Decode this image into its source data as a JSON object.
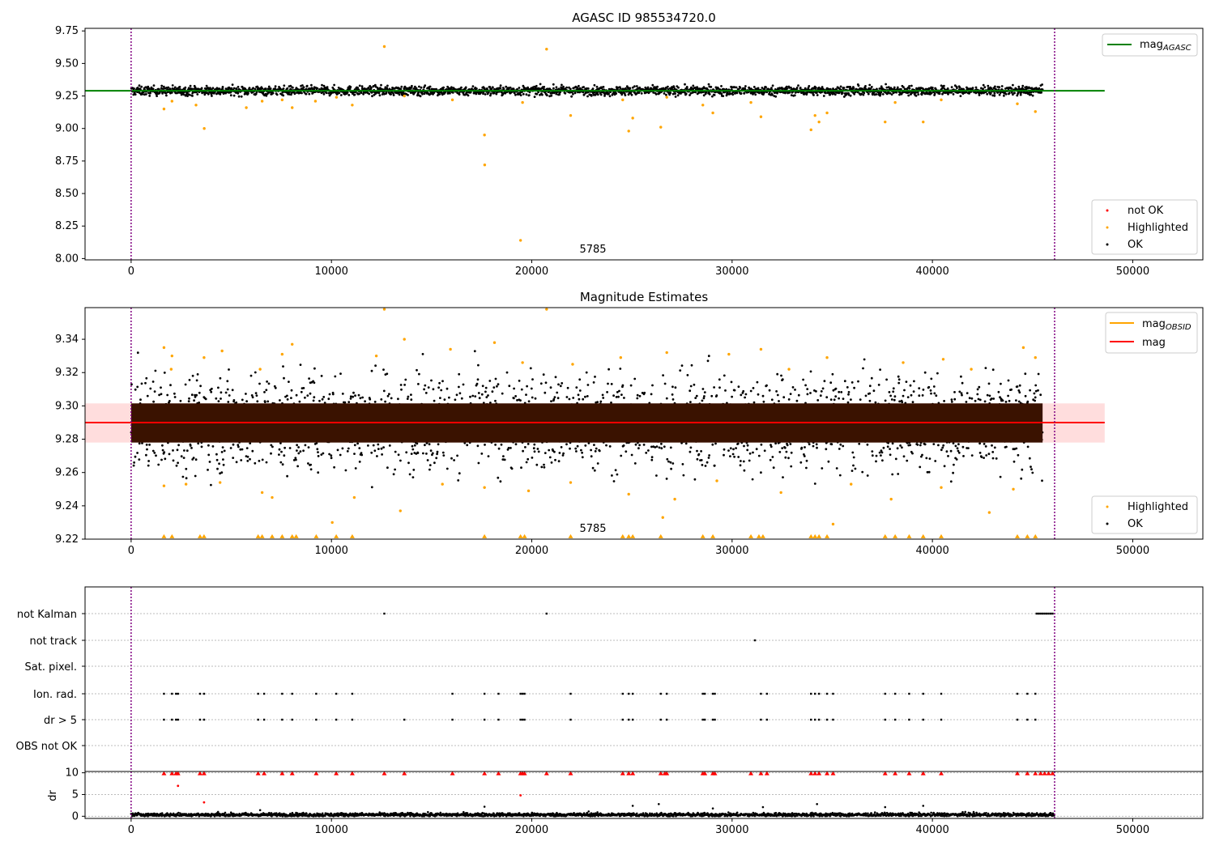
{
  "chart_data": [
    {
      "type": "scatter",
      "title": "AGASC ID 985534720.0",
      "xlim": [
        -2300,
        53500
      ],
      "ylim": [
        7.99,
        9.77
      ],
      "xticks": [
        0,
        10000,
        20000,
        30000,
        40000,
        50000
      ],
      "yticks": [
        "8.00",
        "8.25",
        "8.50",
        "8.75",
        "9.00",
        "9.25",
        "9.50",
        "9.75"
      ],
      "annotation": {
        "text": "5785",
        "x": 23200,
        "y": 8.05
      },
      "vlines": [
        0,
        46100
      ],
      "series": [
        {
          "name": "mag_AGASC",
          "kind": "hline",
          "y": 9.29,
          "x": [
            -2300,
            48600
          ],
          "color": "#008000"
        },
        {
          "name": "not OK",
          "kind": "points",
          "color": "#ff0000",
          "points": []
        },
        {
          "name": "Highlighted",
          "kind": "points",
          "color": "#ffa500",
          "points": [
            [
              1640,
              9.15
            ],
            [
              2040,
              9.21
            ],
            [
              3240,
              9.18
            ],
            [
              3650,
              9.0
            ],
            [
              5750,
              9.16
            ],
            [
              6540,
              9.21
            ],
            [
              7540,
              9.22
            ],
            [
              8040,
              9.16
            ],
            [
              9200,
              9.21
            ],
            [
              10250,
              9.24
            ],
            [
              11040,
              9.18
            ],
            [
              12640,
              9.63
            ],
            [
              13640,
              9.25
            ],
            [
              16040,
              9.22
            ],
            [
              17640,
              8.95
            ],
            [
              17650,
              8.72
            ],
            [
              19440,
              8.14
            ],
            [
              19540,
              9.2
            ],
            [
              20740,
              9.61
            ],
            [
              21940,
              9.1
            ],
            [
              24540,
              9.22
            ],
            [
              24840,
              8.98
            ],
            [
              25040,
              9.08
            ],
            [
              26440,
              9.01
            ],
            [
              26740,
              9.24
            ],
            [
              28540,
              9.18
            ],
            [
              29040,
              9.12
            ],
            [
              30940,
              9.2
            ],
            [
              31440,
              9.09
            ],
            [
              33940,
              8.99
            ],
            [
              34140,
              9.1
            ],
            [
              34340,
              9.05
            ],
            [
              34740,
              9.12
            ],
            [
              37640,
              9.05
            ],
            [
              38140,
              9.2
            ],
            [
              39540,
              9.05
            ],
            [
              40440,
              9.22
            ],
            [
              44240,
              9.19
            ],
            [
              45140,
              9.13
            ]
          ]
        },
        {
          "name": "OK",
          "kind": "band",
          "color": "#000000",
          "center": 9.29,
          "spread": 0.035,
          "x": [
            0,
            45500
          ]
        }
      ],
      "legend": [
        {
          "label": "mag",
          "sub": "AGASC",
          "marker": "line",
          "color": "#008000"
        },
        {
          "label": "not OK",
          "marker": "dot",
          "color": "#ff0000"
        },
        {
          "label": "Highlighted",
          "marker": "dot",
          "color": "#ffa500"
        },
        {
          "label": "OK",
          "marker": "dot",
          "color": "#000000"
        }
      ]
    },
    {
      "type": "scatter",
      "title": "Magnitude Estimates",
      "xlim": [
        -2300,
        53500
      ],
      "ylim": [
        9.22,
        9.359
      ],
      "xticks": [
        0,
        10000,
        20000,
        30000,
        40000,
        50000
      ],
      "yticks": [
        "9.22",
        "9.24",
        "9.26",
        "9.28",
        "9.30",
        "9.32",
        "9.34"
      ],
      "annotation": {
        "text": "5785",
        "x": 23200,
        "y": 9.225
      },
      "vlines": [
        0,
        46100
      ],
      "band": {
        "y": [
          9.278,
          9.3015
        ],
        "x": [
          -2300,
          48600
        ],
        "color": "#ffdddd"
      },
      "series": [
        {
          "name": "mag_OBSID",
          "kind": "hline",
          "y": 9.29,
          "x": [
            0,
            46100
          ],
          "color": "#ffa500"
        },
        {
          "name": "mag",
          "kind": "hline",
          "y": 9.29,
          "x": [
            -2300,
            48600
          ],
          "color": "#ff0000"
        },
        {
          "name": "OK",
          "kind": "band",
          "color": "#000000",
          "center": 9.29,
          "spread": 0.028,
          "x": [
            0,
            45500
          ]
        },
        {
          "name": "Highlighted",
          "kind": "points",
          "color": "#ffa500",
          "points": [
            [
              12640,
              9.358
            ],
            [
              20740,
              9.358
            ],
            [
              13640,
              9.34
            ],
            [
              18140,
              9.338
            ],
            [
              8040,
              9.337
            ],
            [
              15940,
              9.334
            ],
            [
              31440,
              9.334
            ],
            [
              44540,
              9.335
            ],
            [
              1640,
              9.335
            ],
            [
              4540,
              9.333
            ],
            [
              7540,
              9.331
            ],
            [
              26740,
              9.332
            ],
            [
              29840,
              9.331
            ],
            [
              2040,
              9.33
            ],
            [
              12240,
              9.33
            ],
            [
              34740,
              9.329
            ],
            [
              45140,
              9.329
            ],
            [
              24440,
              9.329
            ],
            [
              3640,
              9.329
            ],
            [
              40540,
              9.328
            ],
            [
              19540,
              9.326
            ],
            [
              22040,
              9.325
            ],
            [
              38540,
              9.326
            ],
            [
              13440,
              9.237
            ],
            [
              42840,
              9.236
            ],
            [
              10040,
              9.23
            ],
            [
              35040,
              9.229
            ],
            [
              26540,
              9.233
            ],
            [
              11140,
              9.245
            ],
            [
              6540,
              9.248
            ],
            [
              7040,
              9.245
            ],
            [
              37940,
              9.244
            ],
            [
              40440,
              9.251
            ],
            [
              19840,
              9.249
            ],
            [
              24840,
              9.247
            ],
            [
              44040,
              9.25
            ],
            [
              27140,
              9.244
            ],
            [
              1640,
              9.252
            ],
            [
              2740,
              9.253
            ],
            [
              4440,
              9.254
            ],
            [
              15540,
              9.253
            ],
            [
              29240,
              9.255
            ],
            [
              32440,
              9.248
            ],
            [
              35940,
              9.253
            ],
            [
              17640,
              9.251
            ],
            [
              21940,
              9.254
            ],
            [
              2000,
              9.322
            ],
            [
              6440,
              9.322
            ],
            [
              32840,
              9.322
            ],
            [
              41940,
              9.322
            ]
          ]
        },
        {
          "name": "Highlighted-floor",
          "kind": "tri",
          "color": "#ffa500",
          "y": 9.2215,
          "x": [
            1640,
            2040,
            3440,
            3640,
            6340,
            6540,
            7040,
            7540,
            8040,
            8240,
            9240,
            10240,
            11040,
            17640,
            19440,
            19640,
            21940,
            24540,
            24840,
            25040,
            26440,
            28540,
            29040,
            30940,
            31340,
            31540,
            33940,
            34140,
            34340,
            34740,
            37640,
            38140,
            38840,
            39540,
            40440,
            44240,
            44740,
            45140
          ]
        }
      ],
      "legend": [
        {
          "label": "mag",
          "sub": "OBSID",
          "marker": "line",
          "color": "#ffa500"
        },
        {
          "label": "mag",
          "marker": "line",
          "color": "#ff0000"
        },
        {
          "label": "Highlighted",
          "marker": "dot",
          "color": "#ffa500"
        },
        {
          "label": "OK",
          "marker": "dot",
          "color": "#000000"
        }
      ]
    },
    {
      "type": "scatter",
      "title": "",
      "xlim": [
        -2300,
        53500
      ],
      "categories": [
        "not Kalman",
        "not track",
        "Sat. pixel.",
        "Ion. rad.",
        "dr > 5",
        "OBS not OK"
      ],
      "vlines": [
        0,
        46100
      ],
      "series": [
        {
          "name": "not Kalman",
          "color": "#000000",
          "x": [
            12640,
            20740,
            45200,
            45300,
            45400,
            45500,
            45600,
            45700,
            45800,
            45900,
            46000
          ]
        },
        {
          "name": "not track",
          "color": "#000000",
          "x": [
            31140
          ]
        },
        {
          "name": "Sat. pixel.",
          "color": "#000000",
          "x": []
        },
        {
          "name": "Ion. rad.",
          "color": "#000000",
          "x": [
            1640,
            2040,
            2240,
            2340,
            3440,
            3640,
            6340,
            6640,
            7540,
            8040,
            9240,
            10240,
            11040,
            16040,
            17640,
            18340,
            19440,
            19540,
            19640,
            21940,
            24540,
            24840,
            25040,
            26440,
            26740,
            28540,
            28640,
            29040,
            29140,
            31440,
            31740,
            33940,
            34140,
            34340,
            34740,
            35040,
            37640,
            38140,
            38840,
            39540,
            40440,
            44240,
            44740,
            45140
          ]
        },
        {
          "name": "dr > 5",
          "color": "#000000",
          "x": [
            1640,
            2040,
            2240,
            2340,
            3440,
            3640,
            6340,
            6640,
            7540,
            8040,
            9240,
            10240,
            11040,
            13640,
            16040,
            17640,
            18340,
            19440,
            19540,
            19640,
            21940,
            24540,
            24840,
            25040,
            26440,
            26740,
            28540,
            28640,
            29040,
            29140,
            31440,
            31740,
            33940,
            34140,
            34340,
            34740,
            35040,
            37640,
            38140,
            38840,
            39540,
            40440,
            44240,
            44740,
            45140
          ]
        },
        {
          "name": "OBS not OK",
          "color": "#000000",
          "x": []
        }
      ]
    },
    {
      "type": "scatter",
      "title": "",
      "xlim": [
        -2300,
        53500
      ],
      "ylim": [
        -0.5,
        10.3
      ],
      "xticks": [
        0,
        10000,
        20000,
        30000,
        40000,
        50000
      ],
      "yticks": [
        "0",
        "5",
        "10"
      ],
      "ylabel": "dr",
      "vlines": [
        0,
        46100
      ],
      "series": [
        {
          "name": "dr",
          "kind": "band",
          "color": "#000000",
          "center": 0.35,
          "spread": 0.35,
          "x": [
            0,
            46100
          ]
        },
        {
          "name": "dr-outliers",
          "kind": "points",
          "color": "#000000",
          "points": [
            [
              6440,
              1.4
            ],
            [
              17640,
              2.2
            ],
            [
              25040,
              2.4
            ],
            [
              26340,
              2.8
            ],
            [
              29040,
              1.8
            ],
            [
              31540,
              2.1
            ],
            [
              34240,
              2.8
            ],
            [
              37640,
              2.1
            ],
            [
              39540,
              2.4
            ],
            [
              4340,
              1.0
            ],
            [
              22840,
              1.1
            ],
            [
              41640,
              1.0
            ]
          ]
        },
        {
          "name": "dr-red",
          "kind": "points",
          "color": "#ff0000",
          "points": [
            [
              2340,
              7.0
            ],
            [
              3640,
              3.2
            ],
            [
              19440,
              4.8
            ]
          ]
        },
        {
          "name": "dr-clipped",
          "kind": "tri",
          "color": "#ff0000",
          "y": 9.8,
          "x": [
            1640,
            2040,
            2240,
            2340,
            3440,
            3640,
            6340,
            6640,
            7540,
            8040,
            9240,
            10240,
            11040,
            12640,
            13640,
            16040,
            17640,
            18340,
            19440,
            19540,
            19640,
            20740,
            21940,
            24540,
            24840,
            25040,
            26440,
            26640,
            26740,
            28540,
            28640,
            29040,
            29140,
            30940,
            31440,
            31740,
            33940,
            34140,
            34340,
            34740,
            35040,
            37640,
            38140,
            38840,
            39540,
            40440,
            44240,
            44740,
            45140,
            45400,
            45600,
            45800,
            46000
          ]
        }
      ]
    }
  ]
}
